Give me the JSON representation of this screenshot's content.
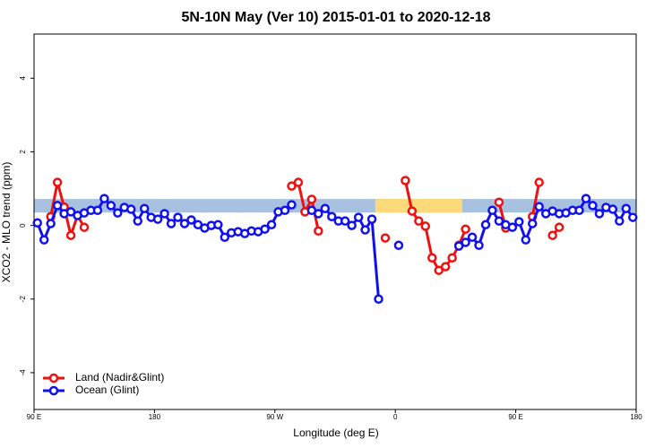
{
  "chart_data": {
    "type": "line",
    "title": "5N-10N May (Ver 10)   2015-01-01 to 2020-12-18",
    "xlabel": "Longitude (deg E)",
    "ylabel": "XCO2 - MLO trend (ppm)",
    "xlim": [
      90,
      540
    ],
    "ylim": [
      -5,
      5.2
    ],
    "xticks": [
      {
        "value": 90,
        "label": "90 E"
      },
      180,
      {
        "value": 270,
        "label": "90 W"
      },
      {
        "value": 360,
        "label": "0"
      },
      {
        "value": 450,
        "label": "90 E"
      },
      {
        "value": 540,
        "label": "180"
      }
    ],
    "yticks": [
      -4,
      -2,
      0,
      2,
      4
    ],
    "band": {
      "range": [
        0.35,
        0.72
      ],
      "color": "#a9c1e0"
    },
    "highlight": {
      "xrange": [
        345,
        410
      ],
      "color": "#fcd97a"
    },
    "legend": "bottom-left",
    "x": [
      92.5,
      97.5,
      102.5,
      107.5,
      112.5,
      117.5,
      122.5,
      127.5,
      132.5,
      137.5,
      142.5,
      147.5,
      152.5,
      157.5,
      162.5,
      167.5,
      172.5,
      177.5,
      182.5,
      187.5,
      192.5,
      197.5,
      202.5,
      207.5,
      212.5,
      217.5,
      222.5,
      227.5,
      232.5,
      237.5,
      242.5,
      247.5,
      252.5,
      257.5,
      262.5,
      267.5,
      272.5,
      277.5,
      282.5,
      287.5,
      292.5,
      297.5,
      302.5,
      307.5,
      312.5,
      317.5,
      322.5,
      327.5,
      332.5,
      337.5,
      342.5,
      347.5,
      352.5,
      357.5,
      362.5,
      367.5,
      372.5,
      377.5,
      382.5,
      387.5,
      392.5,
      397.5,
      402.5,
      407.5,
      412.5,
      417.5,
      422.5,
      427.5,
      432.5,
      437.5,
      442.5,
      447.5,
      452.5,
      457.5,
      462.5,
      467.5,
      472.5,
      477.5,
      482.5,
      487.5,
      492.5,
      497.5,
      502.5,
      507.5,
      512.5,
      517.5,
      522.5,
      527.5,
      532.5,
      537.5
    ],
    "series": [
      {
        "name": "Land (Nadir&Glint)",
        "color": "#ee1111",
        "values": [
          null,
          null,
          0.24,
          1.17,
          0.5,
          -0.27,
          0.27,
          -0.05,
          null,
          null,
          null,
          null,
          null,
          null,
          null,
          null,
          null,
          null,
          null,
          null,
          null,
          null,
          null,
          null,
          null,
          null,
          null,
          null,
          null,
          null,
          null,
          null,
          null,
          null,
          null,
          null,
          null,
          null,
          1.07,
          1.17,
          0.37,
          0.71,
          -0.15,
          null,
          null,
          null,
          null,
          null,
          null,
          null,
          null,
          null,
          -0.34,
          null,
          null,
          1.22,
          0.39,
          0.12,
          -0.02,
          -0.88,
          -1.22,
          -1.12,
          -0.88,
          -0.54,
          -0.1,
          null,
          null,
          null,
          null,
          0.63,
          -0.07,
          null,
          null,
          null,
          0.24,
          1.17,
          null,
          -0.27,
          -0.05,
          null,
          null,
          null,
          null,
          null,
          null,
          null,
          null,
          null,
          null,
          null
        ]
      },
      {
        "name": "Ocean (Glint)",
        "color": "#1111ee",
        "values": [
          0.07,
          -0.39,
          0.05,
          0.54,
          0.32,
          0.37,
          0.27,
          0.34,
          0.41,
          0.41,
          0.73,
          0.54,
          0.34,
          0.49,
          0.44,
          0.12,
          0.46,
          0.22,
          0.17,
          0.32,
          0.05,
          0.22,
          0.05,
          0.15,
          0.02,
          -0.07,
          0.0,
          0.02,
          -0.32,
          -0.2,
          -0.17,
          -0.22,
          -0.15,
          -0.17,
          -0.1,
          0.02,
          0.37,
          0.41,
          0.56,
          null,
          null,
          0.41,
          0.32,
          0.46,
          0.24,
          0.12,
          0.12,
          0.0,
          0.22,
          -0.12,
          0.17,
          -2.0,
          null,
          null,
          -0.54,
          null,
          null,
          null,
          null,
          null,
          null,
          null,
          null,
          -0.56,
          -0.46,
          -0.32,
          -0.54,
          0.02,
          0.41,
          0.12,
          0.02,
          -0.05,
          0.1,
          -0.39,
          0.05,
          0.51,
          0.32,
          0.39,
          0.32,
          0.34,
          0.41,
          0.41,
          0.73,
          0.54,
          0.32,
          0.49,
          0.44,
          0.12,
          0.46,
          0.22
        ]
      }
    ]
  }
}
